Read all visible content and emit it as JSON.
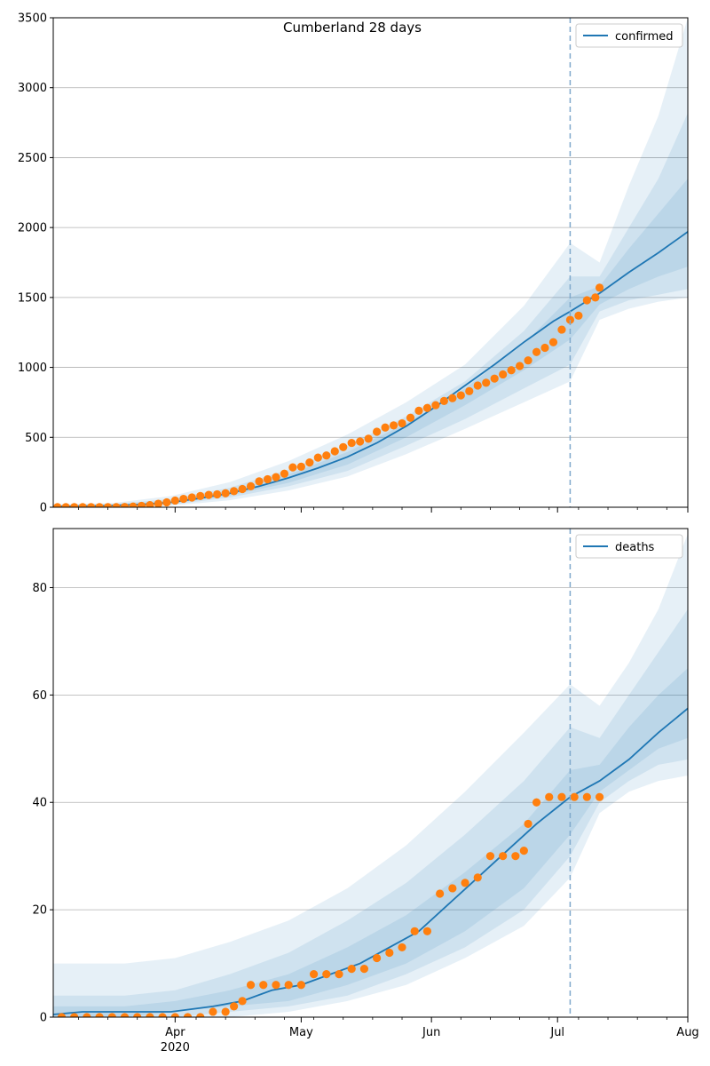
{
  "figure": {
    "title": "Cumberland 28 days"
  },
  "colors": {
    "model": "#1f77b4",
    "observed": "#ff7f0e",
    "band": "#1f77b4",
    "grid": "#b0b0b0",
    "forecast_line": "#7fa9cc"
  },
  "x_axis": {
    "range": [
      "2020-03-03",
      "2020-08-01"
    ],
    "major_ticks": [
      {
        "date": "2020-04-01",
        "label": "Apr",
        "sublabel": "2020"
      },
      {
        "date": "2020-05-01",
        "label": "May",
        "sublabel": ""
      },
      {
        "date": "2020-06-01",
        "label": "Jun",
        "sublabel": ""
      },
      {
        "date": "2020-07-01",
        "label": "Jul",
        "sublabel": ""
      },
      {
        "date": "2020-08-01",
        "label": "Aug",
        "sublabel": ""
      }
    ],
    "minor_tick_dates": [
      "2020-03-09",
      "2020-03-16",
      "2020-03-23",
      "2020-03-30",
      "2020-04-06",
      "2020-04-13",
      "2020-04-20",
      "2020-04-27",
      "2020-05-04",
      "2020-05-11",
      "2020-05-18",
      "2020-05-25",
      "2020-06-08",
      "2020-06-15",
      "2020-06-22",
      "2020-06-29",
      "2020-07-06",
      "2020-07-13",
      "2020-07-20",
      "2020-07-27"
    ]
  },
  "forecast_start": "2020-07-04",
  "chart_data": [
    {
      "type": "line",
      "legend": "confirmed",
      "legend_position": "top-right",
      "grid": "horizontal",
      "yticks": [
        0,
        500,
        1000,
        1500,
        2000,
        2500,
        3000,
        3500
      ],
      "ylim": [
        0,
        3500
      ],
      "model": {
        "dates": [
          "2020-03-03",
          "2020-03-10",
          "2020-03-17",
          "2020-03-24",
          "2020-03-31",
          "2020-04-07",
          "2020-04-14",
          "2020-04-21",
          "2020-04-28",
          "2020-05-05",
          "2020-05-12",
          "2020-05-19",
          "2020-05-26",
          "2020-06-02",
          "2020-06-09",
          "2020-06-16",
          "2020-06-23",
          "2020-06-30",
          "2020-07-04",
          "2020-07-11",
          "2020-07-18",
          "2020-07-25",
          "2020-08-01"
        ],
        "values": [
          5,
          8,
          12,
          20,
          35,
          65,
          100,
          150,
          210,
          280,
          360,
          460,
          580,
          720,
          870,
          1020,
          1180,
          1330,
          1400,
          1530,
          1680,
          1820,
          1970
        ]
      },
      "bands": [
        {
          "dates": [
            "2020-03-03",
            "2020-03-17",
            "2020-03-31",
            "2020-04-14",
            "2020-04-28",
            "2020-05-12",
            "2020-05-26",
            "2020-06-09",
            "2020-06-23",
            "2020-07-04",
            "2020-07-11",
            "2020-07-18",
            "2020-07-25",
            "2020-08-01"
          ],
          "lower": [
            0,
            0,
            10,
            50,
            120,
            220,
            380,
            560,
            750,
            900,
            1340,
            1420,
            1470,
            1500
          ],
          "upper": [
            20,
            30,
            80,
            180,
            330,
            520,
            750,
            1020,
            1440,
            1890,
            1750,
            2300,
            2800,
            3500
          ]
        },
        {
          "dates": [
            "2020-03-03",
            "2020-03-17",
            "2020-03-31",
            "2020-04-14",
            "2020-04-28",
            "2020-05-12",
            "2020-05-26",
            "2020-06-09",
            "2020-06-23",
            "2020-07-04",
            "2020-07-11",
            "2020-07-18",
            "2020-07-25",
            "2020-08-01"
          ],
          "lower": [
            0,
            2,
            18,
            70,
            150,
            260,
            440,
            630,
            850,
            1020,
            1400,
            1480,
            1520,
            1560
          ],
          "upper": [
            15,
            22,
            60,
            140,
            270,
            440,
            650,
            900,
            1260,
            1650,
            1650,
            2000,
            2350,
            2820
          ]
        },
        {
          "dates": [
            "2020-03-03",
            "2020-03-17",
            "2020-03-31",
            "2020-04-14",
            "2020-04-28",
            "2020-05-12",
            "2020-05-26",
            "2020-06-09",
            "2020-06-23",
            "2020-07-04",
            "2020-07-11",
            "2020-07-18",
            "2020-07-25",
            "2020-08-01"
          ],
          "lower": [
            2,
            5,
            25,
            85,
            175,
            305,
            500,
            730,
            980,
            1200,
            1450,
            1560,
            1650,
            1720
          ],
          "upper": [
            10,
            16,
            45,
            115,
            235,
            395,
            600,
            850,
            1170,
            1500,
            1580,
            1850,
            2100,
            2350
          ]
        }
      ],
      "observed": {
        "dates": [
          "2020-03-02",
          "2020-03-04",
          "2020-03-06",
          "2020-03-08",
          "2020-03-10",
          "2020-03-12",
          "2020-03-14",
          "2020-03-16",
          "2020-03-18",
          "2020-03-20",
          "2020-03-22",
          "2020-03-24",
          "2020-03-26",
          "2020-03-28",
          "2020-03-30",
          "2020-04-01",
          "2020-04-03",
          "2020-04-05",
          "2020-04-07",
          "2020-04-09",
          "2020-04-11",
          "2020-04-13",
          "2020-04-15",
          "2020-04-17",
          "2020-04-19",
          "2020-04-21",
          "2020-04-23",
          "2020-04-25",
          "2020-04-27",
          "2020-04-29",
          "2020-05-01",
          "2020-05-03",
          "2020-05-05",
          "2020-05-07",
          "2020-05-09",
          "2020-05-11",
          "2020-05-13",
          "2020-05-15",
          "2020-05-17",
          "2020-05-19",
          "2020-05-21",
          "2020-05-23",
          "2020-05-25",
          "2020-05-27",
          "2020-05-29",
          "2020-05-31",
          "2020-06-02",
          "2020-06-04",
          "2020-06-06",
          "2020-06-08",
          "2020-06-10",
          "2020-06-12",
          "2020-06-14",
          "2020-06-16",
          "2020-06-18",
          "2020-06-20",
          "2020-06-22",
          "2020-06-24",
          "2020-06-26",
          "2020-06-28",
          "2020-06-30",
          "2020-07-02",
          "2020-07-04",
          "2020-07-06",
          "2020-07-08",
          "2020-07-10"
        ],
        "values": [
          1,
          1,
          1,
          1,
          1,
          1,
          1,
          1,
          1,
          2,
          5,
          10,
          15,
          25,
          35,
          48,
          60,
          70,
          80,
          88,
          92,
          100,
          115,
          130,
          150,
          185,
          200,
          215,
          240,
          285,
          290,
          320,
          355,
          370,
          400,
          430,
          460,
          470,
          490,
          540,
          570,
          585,
          600,
          640,
          690,
          710,
          730,
          760,
          780,
          800,
          830,
          870,
          890,
          920,
          950,
          980,
          1010,
          1050,
          1110,
          1140,
          1180,
          1270,
          1340,
          1370,
          1480,
          1500
        ]
      },
      "observed_extra": {
        "dates": [
          "2020-07-11"
        ],
        "values": [
          1570
        ]
      }
    },
    {
      "type": "line",
      "legend": "deaths",
      "legend_position": "top-right",
      "grid": "horizontal",
      "yticks": [
        0,
        20,
        40,
        60,
        80
      ],
      "ylim": [
        0,
        91
      ],
      "model": {
        "dates": [
          "2020-03-03",
          "2020-03-10",
          "2020-03-20",
          "2020-03-31",
          "2020-04-10",
          "2020-04-17",
          "2020-04-24",
          "2020-05-01",
          "2020-05-08",
          "2020-05-15",
          "2020-05-22",
          "2020-05-29",
          "2020-06-05",
          "2020-06-12",
          "2020-06-19",
          "2020-06-26",
          "2020-07-04",
          "2020-07-11",
          "2020-07-18",
          "2020-07-25",
          "2020-08-01"
        ],
        "values": [
          0.5,
          1,
          1,
          1,
          2,
          3,
          5,
          6,
          8,
          10,
          13,
          16,
          21,
          26,
          31,
          36,
          41,
          44,
          48,
          53,
          57.5
        ]
      },
      "bands": [
        {
          "dates": [
            "2020-03-03",
            "2020-03-20",
            "2020-04-01",
            "2020-04-14",
            "2020-04-28",
            "2020-05-12",
            "2020-05-26",
            "2020-06-09",
            "2020-06-23",
            "2020-07-04",
            "2020-07-11",
            "2020-07-18",
            "2020-07-25",
            "2020-08-01"
          ],
          "lower": [
            0,
            0,
            0,
            0,
            1,
            3,
            6,
            11,
            17,
            26,
            38,
            42,
            44,
            45
          ],
          "upper": [
            10,
            10,
            11,
            14,
            18,
            24,
            32,
            42,
            53,
            62,
            58,
            66,
            76,
            90
          ]
        },
        {
          "dates": [
            "2020-03-03",
            "2020-03-20",
            "2020-04-01",
            "2020-04-14",
            "2020-04-28",
            "2020-05-12",
            "2020-05-26",
            "2020-06-09",
            "2020-06-23",
            "2020-07-04",
            "2020-07-11",
            "2020-07-18",
            "2020-07-25",
            "2020-08-01"
          ],
          "lower": [
            0,
            0,
            0,
            1,
            2,
            4,
            8,
            13,
            20,
            30,
            40,
            44,
            47,
            48
          ],
          "upper": [
            4,
            4,
            5,
            8,
            12,
            18,
            25,
            34,
            44,
            54,
            52,
            60,
            68,
            76
          ]
        },
        {
          "dates": [
            "2020-03-03",
            "2020-03-20",
            "2020-04-01",
            "2020-04-14",
            "2020-04-28",
            "2020-05-12",
            "2020-05-26",
            "2020-06-09",
            "2020-06-23",
            "2020-07-04",
            "2020-07-11",
            "2020-07-18",
            "2020-07-25",
            "2020-08-01"
          ],
          "lower": [
            0,
            0,
            1,
            2,
            3,
            6,
            10,
            16,
            24,
            34,
            42,
            46,
            50,
            52
          ],
          "upper": [
            2,
            2,
            3,
            5,
            8,
            13,
            19,
            27,
            36,
            46,
            47,
            54,
            60,
            65
          ]
        }
      ],
      "observed": {
        "dates": [
          "2020-03-02",
          "2020-03-05",
          "2020-03-08",
          "2020-03-11",
          "2020-03-14",
          "2020-03-17",
          "2020-03-20",
          "2020-03-23",
          "2020-03-26",
          "2020-03-29",
          "2020-04-01",
          "2020-04-04",
          "2020-04-07",
          "2020-04-10",
          "2020-04-13",
          "2020-04-15",
          "2020-04-17",
          "2020-04-19",
          "2020-04-22",
          "2020-04-25",
          "2020-04-28",
          "2020-05-01",
          "2020-05-04",
          "2020-05-07",
          "2020-05-10",
          "2020-05-13",
          "2020-05-16",
          "2020-05-19",
          "2020-05-22",
          "2020-05-25",
          "2020-05-28",
          "2020-05-31",
          "2020-06-03",
          "2020-06-06",
          "2020-06-09",
          "2020-06-12",
          "2020-06-15",
          "2020-06-18",
          "2020-06-21",
          "2020-06-23",
          "2020-06-24",
          "2020-06-26",
          "2020-06-29",
          "2020-07-02",
          "2020-07-05",
          "2020-07-08",
          "2020-07-11"
        ],
        "values": [
          0,
          0,
          0,
          0,
          0,
          0,
          0,
          0,
          0,
          0,
          0,
          0,
          0,
          1,
          1,
          2,
          3,
          6,
          6,
          6,
          6,
          6,
          8,
          8,
          8,
          9,
          9,
          11,
          12,
          13,
          16,
          16,
          23,
          24,
          25,
          26,
          30,
          30,
          30,
          31,
          36,
          40,
          41,
          41,
          41,
          41,
          41
        ]
      }
    }
  ]
}
